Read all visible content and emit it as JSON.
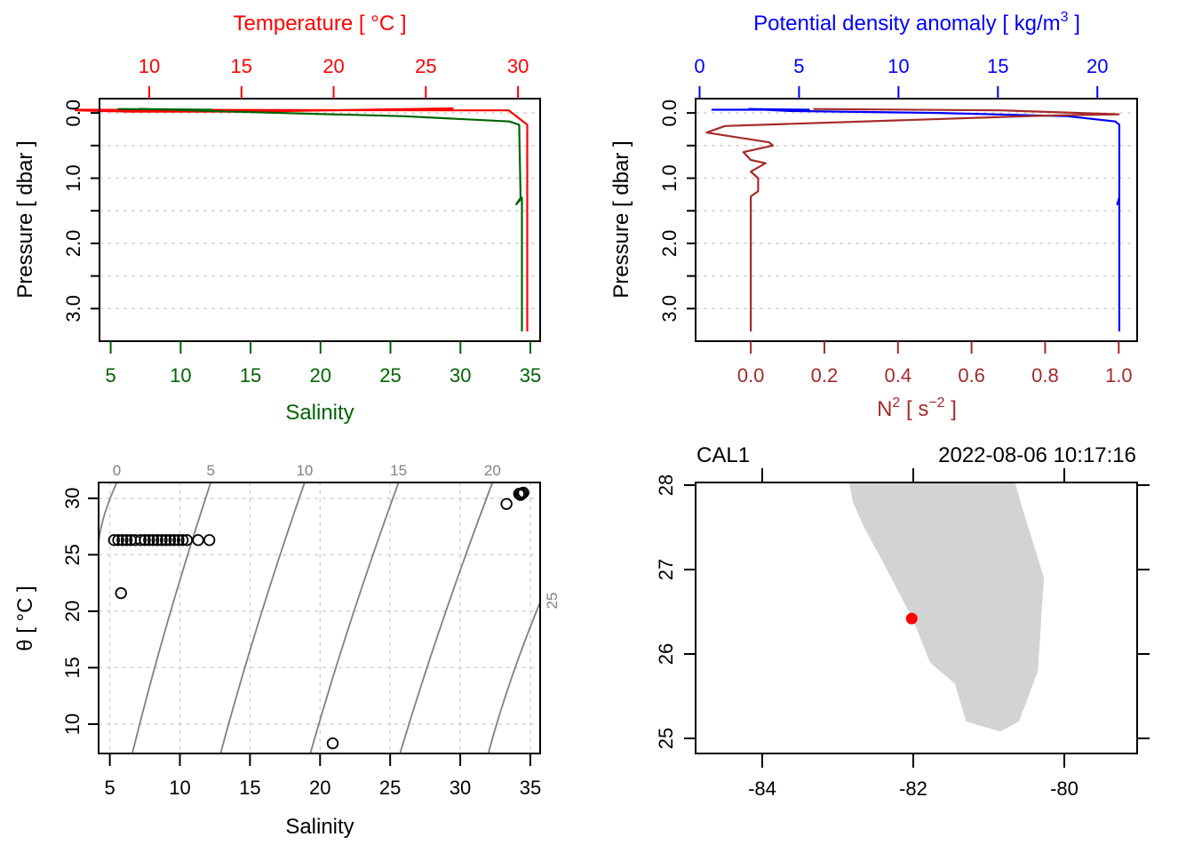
{
  "colors": {
    "temperature": "#ff0000",
    "salinity": "#006400",
    "density": "#0000ff",
    "n2": "#a52a2a",
    "grid": "#d3d3d3",
    "isopycnal": "#808080",
    "land": "#d3d3d3",
    "station": "#ff0000"
  },
  "chart_data": [
    {
      "id": "ts-profile",
      "type": "line",
      "top_axis": {
        "label": "Temperature [ °C ]",
        "ticks": [
          10,
          15,
          20,
          25,
          30
        ],
        "range": [
          7.3,
          31.2
        ]
      },
      "bottom_axis": {
        "label": "Salinity",
        "ticks": [
          5,
          10,
          15,
          20,
          25,
          30,
          35
        ],
        "range": [
          4.2,
          35.7
        ]
      },
      "left_axis": {
        "label": "Pressure [ dbar ]",
        "tick_labels": [
          "0.0",
          "1.0",
          "2.0",
          "3.0"
        ],
        "ticks": [
          0,
          0.5,
          1,
          1.5,
          2,
          2.5,
          3
        ],
        "range": [
          3.5,
          -0.22
        ],
        "reversed": true
      },
      "grid": true,
      "series": [
        {
          "name": "Temperature",
          "axis": "top",
          "points": [
            [
              26.5,
              -0.07
            ],
            [
              15.0,
              -0.02
            ],
            [
              9.0,
              -0.02
            ],
            [
              6.0,
              -0.04
            ],
            [
              6.0,
              -0.05
            ],
            [
              29.5,
              -0.04
            ],
            [
              30.5,
              0.18
            ],
            [
              30.5,
              1.3
            ],
            [
              30.5,
              3.35
            ]
          ]
        },
        {
          "name": "Salinity",
          "axis": "bottom",
          "points": [
            [
              5.5,
              -0.06
            ],
            [
              12.2,
              -0.05
            ],
            [
              7.0,
              -0.06
            ],
            [
              9.5,
              -0.05
            ],
            [
              12.0,
              -0.03
            ],
            [
              26.0,
              0.05
            ],
            [
              33.5,
              0.13
            ],
            [
              34.2,
              0.18
            ],
            [
              34.3,
              1.3
            ],
            [
              34.0,
              1.4
            ],
            [
              34.4,
              1.3
            ],
            [
              34.4,
              3.35
            ]
          ]
        }
      ]
    },
    {
      "id": "density-n2-profile",
      "type": "line",
      "top_axis": {
        "label": "Potential density anomaly [ kg/m3 ]",
        "ticks": [
          0,
          5,
          10,
          15,
          20
        ],
        "range": [
          -0.2,
          22
        ]
      },
      "bottom_axis": {
        "label": "N2 [ s-2 ]",
        "ticks": [
          0.0,
          0.2,
          0.4,
          0.6,
          0.8,
          1.0
        ],
        "tick_labels": [
          "0.0",
          "0.2",
          "0.4",
          "0.6",
          "0.8",
          "1.0"
        ],
        "range": [
          -0.15,
          1.05
        ]
      },
      "left_axis": {
        "label": "Pressure [ dbar ]",
        "tick_labels": [
          "0.0",
          "1.0",
          "2.0",
          "3.0"
        ],
        "ticks": [
          0,
          0.5,
          1,
          1.5,
          2,
          2.5,
          3
        ],
        "range": [
          3.5,
          -0.22
        ],
        "reversed": true
      },
      "grid": true,
      "series": [
        {
          "name": "Potential density anomaly",
          "axis": "top",
          "points": [
            [
              0.6,
              -0.05
            ],
            [
              5.5,
              -0.05
            ],
            [
              2.5,
              -0.06
            ],
            [
              4.5,
              -0.03
            ],
            [
              12.0,
              0.0
            ],
            [
              18.5,
              0.05
            ],
            [
              20.9,
              0.13
            ],
            [
              21.1,
              0.18
            ],
            [
              21.1,
              1.3
            ],
            [
              21.0,
              1.4
            ],
            [
              21.1,
              1.3
            ],
            [
              21.1,
              3.35
            ]
          ]
        },
        {
          "name": "N2",
          "axis": "bottom",
          "points": [
            [
              0.17,
              -0.06
            ],
            [
              0.68,
              -0.04
            ],
            [
              1.0,
              0.02
            ],
            [
              0.8,
              0.04
            ],
            [
              -0.07,
              0.2
            ],
            [
              -0.12,
              0.3
            ],
            [
              0.05,
              0.45
            ],
            [
              0.06,
              0.5
            ],
            [
              -0.02,
              0.6
            ],
            [
              0.0,
              0.72
            ],
            [
              0.04,
              0.77
            ],
            [
              0.0,
              0.9
            ],
            [
              0.02,
              1.0
            ],
            [
              0.02,
              1.2
            ],
            [
              0.0,
              1.28
            ],
            [
              0.0,
              1.35
            ],
            [
              0.0,
              3.35
            ]
          ]
        }
      ]
    },
    {
      "id": "ts-diagram",
      "type": "scatter",
      "bottom_axis": {
        "label": "Salinity",
        "ticks": [
          5,
          10,
          15,
          20,
          25,
          30,
          35
        ],
        "range": [
          4.2,
          35.7
        ]
      },
      "left_axis": {
        "label": "θ [ °C ]",
        "ticks": [
          10,
          15,
          20,
          25,
          30
        ],
        "range": [
          7.4,
          31.4
        ]
      },
      "isopycnals": {
        "labels": [
          "0",
          "5",
          "10",
          "15",
          "20",
          "25"
        ],
        "values": [
          0,
          5,
          10,
          15,
          20,
          25
        ]
      },
      "grid": true,
      "points_summary": "cluster of ~60 points at theta≈26.3 spanning S≈5.3–12.0; isolated points (5.8,21.6),(20.9,8.3),(33.3,29.5); cluster at (34.4,30.4)",
      "points": [
        [
          5.3,
          26.3
        ],
        [
          5.6,
          26.3
        ],
        [
          5.9,
          26.3
        ],
        [
          6.2,
          26.3
        ],
        [
          6.5,
          26.3
        ],
        [
          6.8,
          26.3
        ],
        [
          7.2,
          26.3
        ],
        [
          7.5,
          26.3
        ],
        [
          7.8,
          26.3
        ],
        [
          8.1,
          26.3
        ],
        [
          8.4,
          26.3
        ],
        [
          8.7,
          26.3
        ],
        [
          9.0,
          26.3
        ],
        [
          9.3,
          26.3
        ],
        [
          9.6,
          26.3
        ],
        [
          9.9,
          26.3
        ],
        [
          10.2,
          26.3
        ],
        [
          10.5,
          26.3
        ],
        [
          11.3,
          26.3
        ],
        [
          12.1,
          26.3
        ],
        [
          5.8,
          21.6
        ],
        [
          20.9,
          8.3
        ],
        [
          33.3,
          29.5
        ],
        [
          34.2,
          30.4
        ],
        [
          34.4,
          30.4
        ],
        [
          34.5,
          30.5
        ],
        [
          34.3,
          30.3
        ]
      ]
    },
    {
      "id": "station-map",
      "type": "scatter",
      "title_left": "CAL1",
      "title_right": "2022-08-06 10:17:16",
      "bottom_axis": {
        "ticks": [
          -84,
          -82,
          -80
        ],
        "range": [
          -84.9,
          -79.05
        ]
      },
      "left_axis": {
        "ticks": [
          28,
          27,
          26,
          25
        ],
        "range": [
          24.85,
          28.03
        ]
      },
      "land_polygon": [
        [
          -82.85,
          28.03
        ],
        [
          -82.8,
          27.8
        ],
        [
          -82.65,
          27.5
        ],
        [
          -82.35,
          27.0
        ],
        [
          -82.0,
          26.4
        ],
        [
          -81.78,
          25.9
        ],
        [
          -81.45,
          25.65
        ],
        [
          -81.3,
          25.2
        ],
        [
          -80.85,
          25.08
        ],
        [
          -80.6,
          25.2
        ],
        [
          -80.35,
          25.8
        ],
        [
          -80.3,
          26.5
        ],
        [
          -80.27,
          26.9
        ],
        [
          -80.58,
          27.8
        ],
        [
          -80.65,
          28.03
        ]
      ],
      "station": {
        "lon": -82.02,
        "lat": 26.42,
        "name": "CAL1"
      }
    }
  ]
}
